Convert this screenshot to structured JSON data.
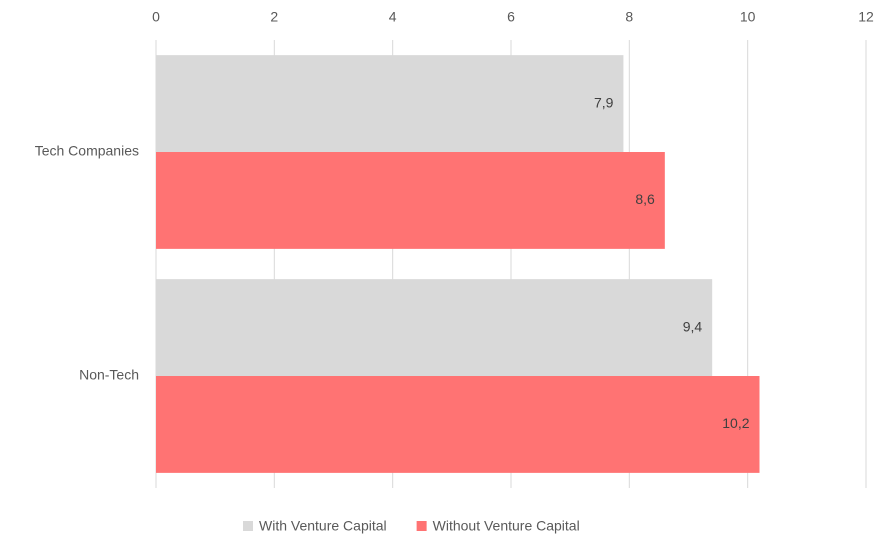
{
  "chart_data": {
    "type": "hbar",
    "categories": [
      "Tech Companies",
      "Non-Tech"
    ],
    "series": [
      {
        "name": "With Venture Capital",
        "color": "#d9d9d9",
        "values": [
          7.9,
          9.4
        ],
        "value_labels": [
          "7,9",
          "9,4"
        ]
      },
      {
        "name": "Without Venture Capital",
        "color": "#ff7373",
        "values": [
          8.6,
          10.2
        ],
        "value_labels": [
          "8,6",
          "10,2"
        ]
      }
    ],
    "xlim": [
      0,
      12
    ],
    "xticks": [
      0,
      2,
      4,
      6,
      8,
      10,
      12
    ],
    "grid": true,
    "legend": "bottom"
  }
}
